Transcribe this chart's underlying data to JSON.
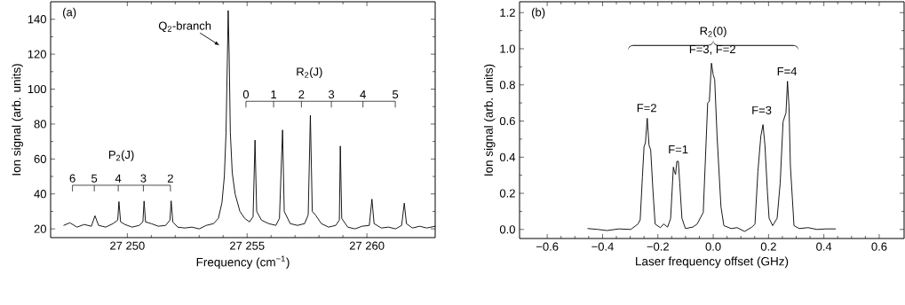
{
  "chart_data": [
    {
      "type": "line",
      "xlabel": "Frequency (cm$^{−1}$)",
      "ylabel": "Ion signal (arb. units)",
      "color": "#000000",
      "xlim": [
        27246.8,
        27262.85
      ],
      "ylim": [
        15,
        150
      ],
      "xticks": [
        {
          "value": 27250,
          "label": "27 250"
        },
        {
          "value": 27255,
          "label": "27 255"
        },
        {
          "value": 27260,
          "label": "27 260"
        }
      ],
      "yticks": [
        20,
        40,
        60,
        80,
        100,
        120,
        140
      ],
      "x": [
        27247.35,
        27247.6,
        27247.9,
        27248.2,
        27248.5,
        27248.65,
        27248.8,
        27249.1,
        27249.4,
        27249.6,
        27249.65,
        27249.72,
        27249.9,
        27250.2,
        27250.5,
        27250.65,
        27250.7,
        27250.76,
        27251.0,
        27251.3,
        27251.6,
        27251.78,
        27251.83,
        27251.9,
        27252.1,
        27252.4,
        27252.7,
        27253.0,
        27253.3,
        27253.6,
        27253.8,
        27253.95,
        27254.05,
        27254.12,
        27254.18,
        27254.21,
        27254.25,
        27254.3,
        27254.38,
        27254.5,
        27254.7,
        27254.9,
        27255.1,
        27255.25,
        27255.33,
        27255.4,
        27255.6,
        27255.9,
        27256.2,
        27256.35,
        27256.48,
        27256.55,
        27256.8,
        27257.1,
        27257.4,
        27257.55,
        27257.64,
        27257.72,
        27257.85,
        27258.1,
        27258.4,
        27258.7,
        27258.85,
        27258.89,
        27258.95,
        27259.2,
        27259.5,
        27259.8,
        27260.1,
        27260.21,
        27260.3,
        27260.6,
        27260.9,
        27261.2,
        27261.45,
        27261.56,
        27261.65,
        27261.9,
        27262.2,
        27262.5,
        27262.85
      ],
      "values": [
        22,
        23.5,
        21,
        22.5,
        21.5,
        27.5,
        22,
        21,
        23,
        25,
        35.6,
        24,
        22.5,
        21,
        22,
        24,
        35.9,
        24,
        23,
        21.5,
        22,
        25,
        36,
        24,
        21,
        20.5,
        21,
        20,
        22,
        23,
        26,
        35,
        50,
        75,
        120,
        145,
        120,
        75,
        52,
        40,
        30,
        26,
        24,
        27,
        70.8,
        30,
        25,
        23,
        22,
        26,
        76.6,
        30,
        23,
        22,
        23,
        28,
        85,
        30,
        28,
        23,
        21,
        22,
        25,
        67.4,
        26,
        21,
        20,
        21.5,
        22,
        37,
        23,
        20.5,
        21,
        20,
        22,
        34.7,
        23,
        20.5,
        21.5,
        20.5,
        21.5
      ],
      "annotations": [
        "(a)",
        "Q$_{2}$-branch",
        "P$_{2}$(J)",
        "6",
        "5",
        "4",
        "3",
        "2",
        "R$_{2}$(J)",
        "0",
        "1",
        "2",
        "3",
        "4",
        "5"
      ]
    },
    {
      "type": "line",
      "xlabel": "Laser frequency offset (GHz)",
      "ylabel": "Ion signal (arb. units)",
      "color": "#000000",
      "xlim": [
        -0.7,
        0.69
      ],
      "ylim": [
        -0.05,
        1.26
      ],
      "xticks": [
        {
          "value": -0.6,
          "label": "−0.6"
        },
        {
          "value": -0.4,
          "label": "−0.4"
        },
        {
          "value": -0.2,
          "label": "−0.2"
        },
        {
          "value": 0,
          "label": "0.0"
        },
        {
          "value": 0.2,
          "label": "0.2"
        },
        {
          "value": 0.4,
          "label": "0.4"
        },
        {
          "value": 0.6,
          "label": "0.6"
        }
      ],
      "yticks": [
        {
          "value": 0,
          "label": "0.0"
        },
        {
          "value": 0.2,
          "label": "0.2"
        },
        {
          "value": 0.4,
          "label": "0.4"
        },
        {
          "value": 0.6,
          "label": "0.6"
        },
        {
          "value": 0.8,
          "label": "0.8"
        },
        {
          "value": 1.0,
          "label": "1.0"
        },
        {
          "value": 1.2,
          "label": "1.2"
        }
      ],
      "x": [
        -0.453,
        -0.416,
        -0.384,
        -0.341,
        -0.298,
        -0.272,
        -0.264,
        -0.256,
        -0.25,
        -0.245,
        -0.2385,
        -0.232,
        -0.226,
        -0.218,
        -0.21,
        -0.191,
        -0.179,
        -0.165,
        -0.154,
        -0.144,
        -0.14,
        -0.136,
        -0.1315,
        -0.126,
        -0.121,
        -0.113,
        -0.1005,
        -0.074,
        -0.058,
        -0.036,
        -0.02,
        -0.014,
        -0.0064,
        0.0,
        0.0053,
        0.014,
        0.028,
        0.0385,
        0.065,
        0.087,
        0.113,
        0.14,
        0.151,
        0.1615,
        0.172,
        0.18,
        0.187,
        0.196,
        0.202,
        0.215,
        0.231,
        0.242,
        0.2525,
        0.263,
        0.2685,
        0.274,
        0.279,
        0.292,
        0.311,
        0.343,
        0.375,
        0.407,
        0.442
      ],
      "values": [
        0.005,
        0,
        -0.006,
        0.003,
        0,
        0.03,
        0.053,
        0.29,
        0.458,
        0.48,
        0.615,
        0.466,
        0.44,
        0.22,
        0.03,
        0.01,
        0.03,
        0.013,
        0.06,
        0.345,
        0.32,
        0.305,
        0.377,
        0.377,
        0.256,
        0.062,
        0.005,
        0.013,
        0.03,
        0.094,
        0.7,
        0.71,
        0.92,
        0.855,
        0.83,
        0.515,
        0.126,
        0.021,
        0.005,
        0.01,
        -0.011,
        0.013,
        0.03,
        0.32,
        0.515,
        0.58,
        0.466,
        0.207,
        0.062,
        0.021,
        0.062,
        0.256,
        0.596,
        0.645,
        0.82,
        0.677,
        0.353,
        0.021,
        0.005,
        0.01,
        0,
        0.003,
        0.003
      ],
      "annotations": [
        "(b)",
        "R$_{2}$(0)",
        "F=2",
        "F=1",
        "F=3, F=2",
        "F=3",
        "F=4"
      ]
    }
  ]
}
